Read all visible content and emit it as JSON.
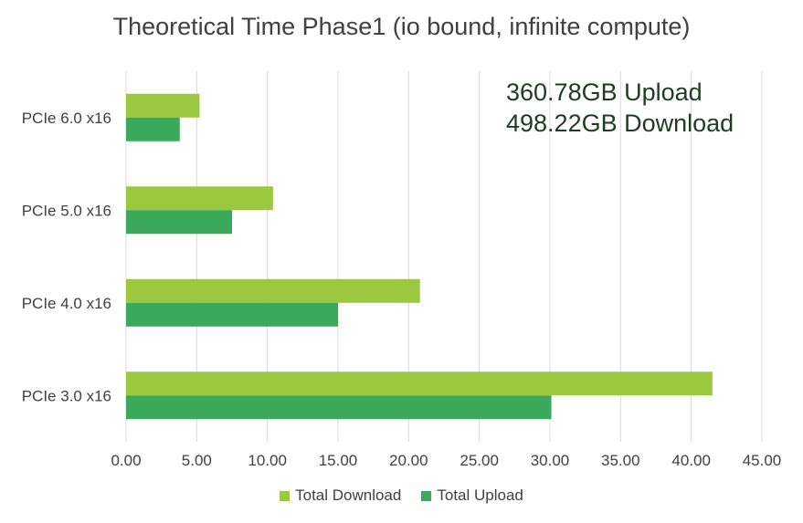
{
  "title": "Theoretical Time Phase1 (io bound, infinite compute)",
  "annotations": [
    "360.78GB Upload",
    "498.22GB Download"
  ],
  "colors": {
    "download": "#9bc83f",
    "upload": "#3aa95b",
    "grid": "#d9d9d9",
    "text": "#404040"
  },
  "chart_data": {
    "type": "bar",
    "orientation": "horizontal",
    "categories": [
      "PCIe 6.0 x16",
      "PCIe 5.0 x16",
      "PCIe 4.0 x16",
      "PCIe 3.0 x16"
    ],
    "series": [
      {
        "name": "Total Download",
        "values": [
          5.2,
          10.4,
          20.8,
          41.5
        ]
      },
      {
        "name": "Total Upload",
        "values": [
          3.8,
          7.5,
          15.0,
          30.1
        ]
      }
    ],
    "xlim": [
      0,
      45
    ],
    "xticks": [
      "0.00",
      "5.00",
      "10.00",
      "15.00",
      "20.00",
      "25.00",
      "30.00",
      "35.00",
      "40.00",
      "45.00"
    ],
    "grid": "vertical",
    "legend": "bottom"
  }
}
